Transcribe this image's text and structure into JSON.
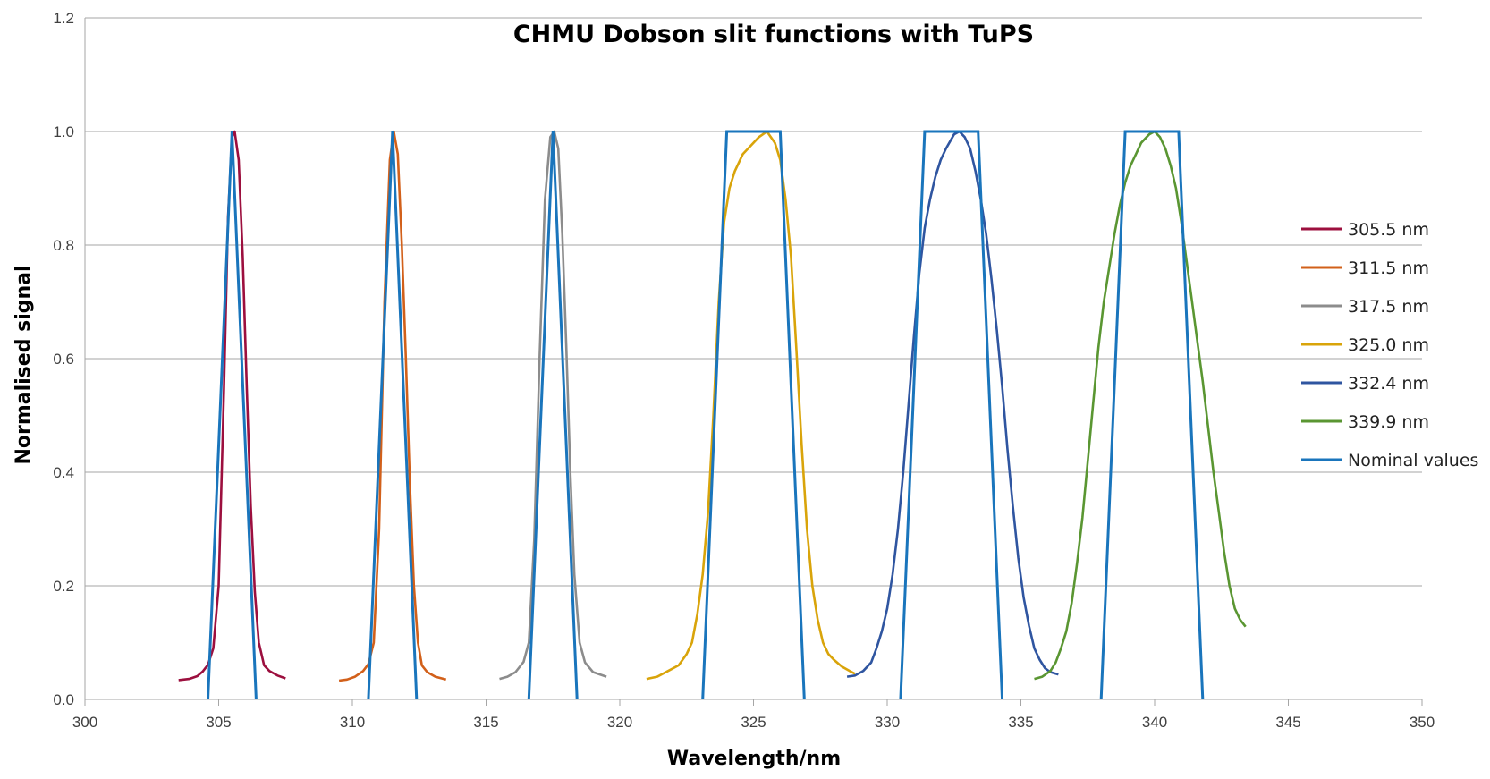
{
  "chart_data": {
    "type": "line",
    "title": "CHMU Dobson slit functions with TuPS",
    "xlabel": "Wavelength/nm",
    "ylabel": "Normalised signal",
    "xlim": [
      300,
      350
    ],
    "ylim": [
      0,
      1.2
    ],
    "x_ticks": [
      "300",
      "305",
      "310",
      "315",
      "320",
      "325",
      "330",
      "335",
      "340",
      "345",
      "350"
    ],
    "y_ticks": [
      "0.0",
      "0.2",
      "0.4",
      "0.6",
      "0.8",
      "1.0",
      "1.2"
    ],
    "grid": "horizontal",
    "legend_position": "right",
    "series": [
      {
        "name": "305.5 nm",
        "color": "#9c0f3e",
        "points": [
          [
            303.5,
            0.034
          ],
          [
            303.9,
            0.036
          ],
          [
            304.2,
            0.041
          ],
          [
            304.4,
            0.049
          ],
          [
            304.6,
            0.061
          ],
          [
            304.8,
            0.09
          ],
          [
            305.0,
            0.2
          ],
          [
            305.2,
            0.55
          ],
          [
            305.35,
            0.85
          ],
          [
            305.5,
            0.99
          ],
          [
            305.6,
            1.0
          ],
          [
            305.75,
            0.95
          ],
          [
            305.9,
            0.78
          ],
          [
            306.05,
            0.55
          ],
          [
            306.2,
            0.34
          ],
          [
            306.35,
            0.19
          ],
          [
            306.5,
            0.1
          ],
          [
            306.7,
            0.06
          ],
          [
            306.9,
            0.05
          ],
          [
            307.2,
            0.042
          ],
          [
            307.5,
            0.037
          ]
        ]
      },
      {
        "name": "311.5 nm",
        "color": "#d2601a",
        "points": [
          [
            309.5,
            0.033
          ],
          [
            309.8,
            0.035
          ],
          [
            310.1,
            0.04
          ],
          [
            310.4,
            0.05
          ],
          [
            310.6,
            0.062
          ],
          [
            310.8,
            0.1
          ],
          [
            311.0,
            0.3
          ],
          [
            311.2,
            0.7
          ],
          [
            311.4,
            0.95
          ],
          [
            311.55,
            1.0
          ],
          [
            311.7,
            0.96
          ],
          [
            311.85,
            0.8
          ],
          [
            312.0,
            0.6
          ],
          [
            312.15,
            0.38
          ],
          [
            312.3,
            0.2
          ],
          [
            312.45,
            0.1
          ],
          [
            312.6,
            0.06
          ],
          [
            312.8,
            0.048
          ],
          [
            313.1,
            0.04
          ],
          [
            313.5,
            0.035
          ]
        ]
      },
      {
        "name": "317.5 nm",
        "color": "#8c8c8c",
        "points": [
          [
            315.5,
            0.036
          ],
          [
            315.8,
            0.04
          ],
          [
            316.1,
            0.048
          ],
          [
            316.4,
            0.066
          ],
          [
            316.6,
            0.1
          ],
          [
            316.8,
            0.28
          ],
          [
            317.0,
            0.6
          ],
          [
            317.2,
            0.88
          ],
          [
            317.4,
            0.99
          ],
          [
            317.55,
            1.0
          ],
          [
            317.7,
            0.97
          ],
          [
            317.85,
            0.82
          ],
          [
            318.0,
            0.62
          ],
          [
            318.15,
            0.4
          ],
          [
            318.3,
            0.22
          ],
          [
            318.5,
            0.1
          ],
          [
            318.7,
            0.065
          ],
          [
            319.0,
            0.048
          ],
          [
            319.5,
            0.04
          ]
        ]
      },
      {
        "name": "325.0 nm",
        "color": "#d9a40a",
        "points": [
          [
            321.0,
            0.036
          ],
          [
            321.4,
            0.04
          ],
          [
            321.8,
            0.05
          ],
          [
            322.2,
            0.06
          ],
          [
            322.5,
            0.08
          ],
          [
            322.7,
            0.1
          ],
          [
            322.9,
            0.15
          ],
          [
            323.1,
            0.22
          ],
          [
            323.3,
            0.33
          ],
          [
            323.5,
            0.5
          ],
          [
            323.7,
            0.7
          ],
          [
            323.9,
            0.84
          ],
          [
            324.1,
            0.9
          ],
          [
            324.3,
            0.93
          ],
          [
            324.6,
            0.96
          ],
          [
            324.9,
            0.975
          ],
          [
            325.2,
            0.99
          ],
          [
            325.5,
            1.0
          ],
          [
            325.8,
            0.98
          ],
          [
            326.0,
            0.95
          ],
          [
            326.2,
            0.88
          ],
          [
            326.4,
            0.78
          ],
          [
            326.6,
            0.62
          ],
          [
            326.8,
            0.45
          ],
          [
            327.0,
            0.3
          ],
          [
            327.2,
            0.2
          ],
          [
            327.4,
            0.14
          ],
          [
            327.6,
            0.1
          ],
          [
            327.8,
            0.08
          ],
          [
            328.0,
            0.07
          ],
          [
            328.3,
            0.058
          ],
          [
            328.6,
            0.05
          ],
          [
            328.8,
            0.045
          ]
        ]
      },
      {
        "name": "332.4 nm",
        "color": "#2f55a0",
        "points": [
          [
            328.5,
            0.04
          ],
          [
            328.8,
            0.042
          ],
          [
            329.1,
            0.05
          ],
          [
            329.4,
            0.065
          ],
          [
            329.6,
            0.09
          ],
          [
            329.8,
            0.12
          ],
          [
            330.0,
            0.16
          ],
          [
            330.2,
            0.22
          ],
          [
            330.4,
            0.3
          ],
          [
            330.6,
            0.4
          ],
          [
            330.8,
            0.52
          ],
          [
            331.0,
            0.64
          ],
          [
            331.2,
            0.75
          ],
          [
            331.4,
            0.83
          ],
          [
            331.6,
            0.88
          ],
          [
            331.8,
            0.92
          ],
          [
            332.0,
            0.95
          ],
          [
            332.2,
            0.97
          ],
          [
            332.5,
            0.995
          ],
          [
            332.7,
            1.0
          ],
          [
            332.9,
            0.99
          ],
          [
            333.1,
            0.97
          ],
          [
            333.3,
            0.93
          ],
          [
            333.5,
            0.88
          ],
          [
            333.7,
            0.82
          ],
          [
            333.9,
            0.74
          ],
          [
            334.1,
            0.65
          ],
          [
            334.3,
            0.55
          ],
          [
            334.5,
            0.44
          ],
          [
            334.7,
            0.34
          ],
          [
            334.9,
            0.25
          ],
          [
            335.1,
            0.18
          ],
          [
            335.3,
            0.13
          ],
          [
            335.5,
            0.09
          ],
          [
            335.7,
            0.07
          ],
          [
            335.9,
            0.055
          ],
          [
            336.1,
            0.048
          ],
          [
            336.4,
            0.044
          ]
        ]
      },
      {
        "name": "339.9 nm",
        "color": "#5a9632",
        "points": [
          [
            335.5,
            0.036
          ],
          [
            335.8,
            0.04
          ],
          [
            336.1,
            0.05
          ],
          [
            336.3,
            0.065
          ],
          [
            336.5,
            0.09
          ],
          [
            336.7,
            0.12
          ],
          [
            336.9,
            0.17
          ],
          [
            337.1,
            0.24
          ],
          [
            337.3,
            0.32
          ],
          [
            337.5,
            0.42
          ],
          [
            337.7,
            0.52
          ],
          [
            337.9,
            0.62
          ],
          [
            338.1,
            0.7
          ],
          [
            338.3,
            0.76
          ],
          [
            338.5,
            0.82
          ],
          [
            338.7,
            0.87
          ],
          [
            338.9,
            0.91
          ],
          [
            339.1,
            0.94
          ],
          [
            339.3,
            0.96
          ],
          [
            339.5,
            0.98
          ],
          [
            339.8,
            0.995
          ],
          [
            340.0,
            1.0
          ],
          [
            340.2,
            0.99
          ],
          [
            340.4,
            0.97
          ],
          [
            340.6,
            0.94
          ],
          [
            340.8,
            0.9
          ],
          [
            341.0,
            0.84
          ],
          [
            341.2,
            0.77
          ],
          [
            341.4,
            0.7
          ],
          [
            341.6,
            0.63
          ],
          [
            341.8,
            0.56
          ],
          [
            342.0,
            0.48
          ],
          [
            342.2,
            0.4
          ],
          [
            342.4,
            0.33
          ],
          [
            342.6,
            0.26
          ],
          [
            342.8,
            0.2
          ],
          [
            343.0,
            0.16
          ],
          [
            343.2,
            0.14
          ],
          [
            343.4,
            0.128
          ]
        ]
      },
      {
        "name": "Nominal values",
        "color": "#1a75bc",
        "segments": [
          [
            [
              304.6,
              0
            ],
            [
              305.5,
              1.0
            ],
            [
              306.4,
              0
            ]
          ],
          [
            [
              310.6,
              0
            ],
            [
              311.5,
              1.0
            ],
            [
              312.4,
              0
            ]
          ],
          [
            [
              316.6,
              0
            ],
            [
              317.5,
              1.0
            ],
            [
              318.4,
              0
            ]
          ],
          [
            [
              323.1,
              0
            ],
            [
              324.0,
              1.0
            ],
            [
              326.0,
              1.0
            ],
            [
              326.9,
              0
            ]
          ],
          [
            [
              330.5,
              0
            ],
            [
              331.4,
              1.0
            ],
            [
              333.4,
              1.0
            ],
            [
              334.3,
              0
            ]
          ],
          [
            [
              338.0,
              0
            ],
            [
              338.9,
              1.0
            ],
            [
              340.9,
              1.0
            ],
            [
              341.8,
              0
            ]
          ]
        ]
      }
    ]
  }
}
